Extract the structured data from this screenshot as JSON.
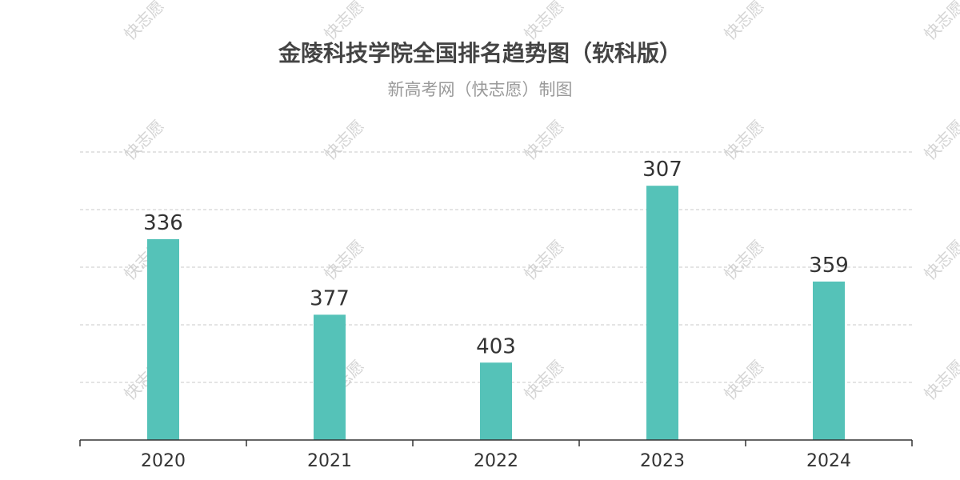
{
  "chart_data": {
    "type": "bar",
    "title": "金陵科技学院全国排名趋势图（软科版）",
    "subtitle": "新高考网（快志愿）制图",
    "categories": [
      "2020",
      "2021",
      "2022",
      "2023",
      "2024"
    ],
    "values": [
      336,
      377,
      403,
      307,
      359
    ],
    "yaxis_inverted": true,
    "ylim": [
      445,
      280
    ],
    "grid": true,
    "bar_color": "#55c2b8",
    "watermark": "快志愿"
  }
}
